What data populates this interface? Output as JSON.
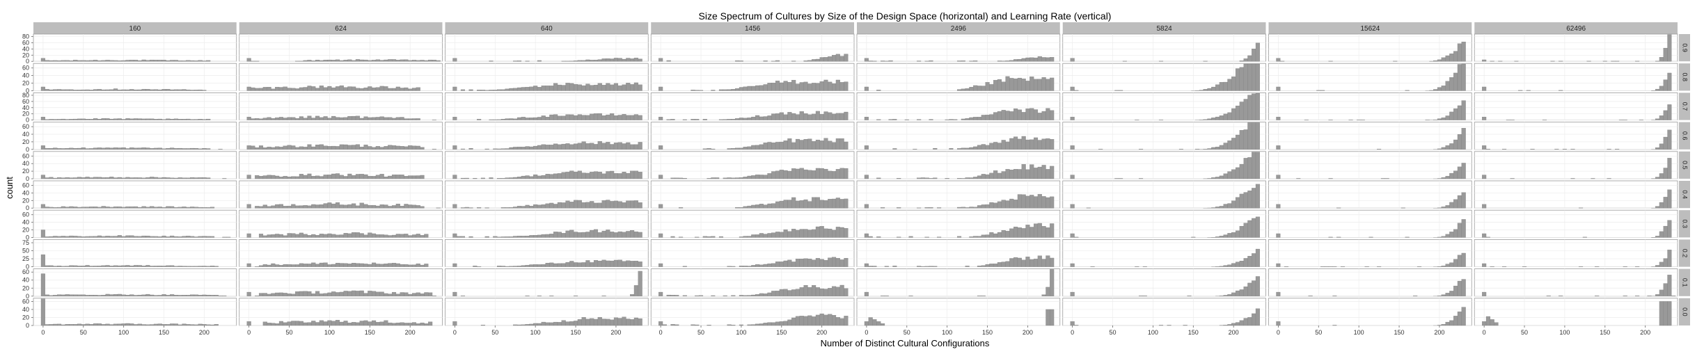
{
  "chart_data": {
    "type": "histogram",
    "title": "Size Spectrum of Cultures by Size of the Design Space (horizontal) and Learning Rate (vertical)",
    "xlabel": "Number of Distinct Cultural Configurations",
    "ylabel": "count",
    "facet_columns": [
      "160",
      "624",
      "640",
      "1456",
      "2496",
      "5824",
      "15624",
      "62496"
    ],
    "facet_rows": [
      "0.9",
      "0.8",
      "0.7",
      "0.6",
      "0.5",
      "0.4",
      "0.3",
      "0.2",
      "0.1",
      "0.0"
    ],
    "xlim": [
      -12,
      240
    ],
    "x_ticks": [
      0,
      50,
      100,
      150,
      200
    ],
    "row_y_ticks": [
      [
        0,
        20,
        40,
        60,
        80
      ],
      [
        0,
        20,
        40,
        60
      ],
      [
        0,
        20,
        40,
        60,
        80
      ],
      [
        0,
        20,
        40,
        60
      ],
      [
        0,
        20,
        40,
        60
      ],
      [
        0,
        20,
        40,
        60
      ],
      [
        0,
        20,
        40,
        60
      ],
      [
        0,
        25,
        50,
        75
      ],
      [
        0,
        20,
        40,
        60
      ],
      [
        0,
        20,
        40,
        60
      ]
    ],
    "row_ymax": [
      88,
      72,
      88,
      72,
      72,
      72,
      72,
      85,
      68,
      68
    ],
    "bin_width": 5,
    "zero_bin_count": 10,
    "panel_profiles": [
      {
        "row": 0,
        "col": 0,
        "zero": 10,
        "shape": "spread",
        "center": 100,
        "width": 110,
        "peak": 4
      },
      {
        "row": 0,
        "col": 1,
        "zero": 10,
        "shape": "spread",
        "center": 155,
        "width": 90,
        "peak": 5
      },
      {
        "row": 0,
        "col": 2,
        "zero": 10,
        "shape": "skew",
        "center": 205,
        "width": 70,
        "peak": 10
      },
      {
        "row": 0,
        "col": 3,
        "zero": 10,
        "shape": "skew",
        "center": 222,
        "width": 45,
        "peak": 22
      },
      {
        "row": 0,
        "col": 4,
        "zero": 10,
        "shape": "skew",
        "center": 215,
        "width": 50,
        "peak": 15
      },
      {
        "row": 0,
        "col": 5,
        "zero": 10,
        "shape": "peak",
        "center": 230,
        "width": 25,
        "peak": 62
      },
      {
        "row": 0,
        "col": 6,
        "zero": 10,
        "shape": "peak",
        "center": 225,
        "width": 40,
        "peak": 50
      },
      {
        "row": 0,
        "col": 7,
        "zero": 5,
        "shape": "peak",
        "center": 228,
        "width": 15,
        "peak": 80
      }
    ]
  }
}
